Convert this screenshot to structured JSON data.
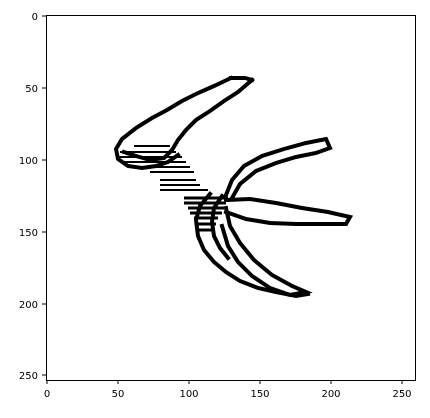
{
  "image_view": {
    "x_ticks": [
      "0",
      "50",
      "100",
      "150",
      "200",
      "250"
    ],
    "y_ticks": [
      "0",
      "50",
      "100",
      "150",
      "200",
      "250"
    ],
    "image_colors": {
      "background": "#ffffff",
      "ink": "#000000"
    }
  }
}
